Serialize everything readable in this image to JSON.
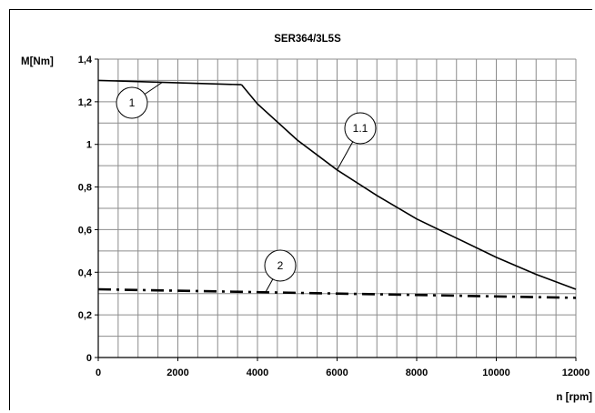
{
  "chart_data": {
    "type": "line",
    "title": "SER364/3L5S",
    "xlabel": "n [rpm]",
    "ylabel": "M[Nm]",
    "xlim": [
      0,
      12000
    ],
    "ylim": [
      0,
      1.4
    ],
    "x_ticks": [
      "0",
      "2000",
      "4000",
      "6000",
      "8000",
      "10000",
      "12000"
    ],
    "y_ticks": [
      "0",
      "0,2",
      "0,4",
      "0,6",
      "0,8",
      "1",
      "1,2",
      "1,4"
    ],
    "x_minor_step": 500,
    "y_minor_step": 0.1,
    "grid": true,
    "series": [
      {
        "label": "1",
        "style": "solid",
        "x": [
          0,
          3600
        ],
        "y": [
          1.3,
          1.28
        ]
      },
      {
        "label": "1.1",
        "style": "solid",
        "x": [
          3600,
          4000,
          5000,
          6000,
          7000,
          8000,
          9000,
          10000,
          11000,
          12000
        ],
        "y": [
          1.28,
          1.19,
          1.02,
          0.88,
          0.76,
          0.65,
          0.56,
          0.47,
          0.39,
          0.32
        ]
      },
      {
        "label": "2",
        "style": "dash-dot",
        "x": [
          0,
          12000
        ],
        "y": [
          0.32,
          0.28
        ]
      }
    ]
  }
}
